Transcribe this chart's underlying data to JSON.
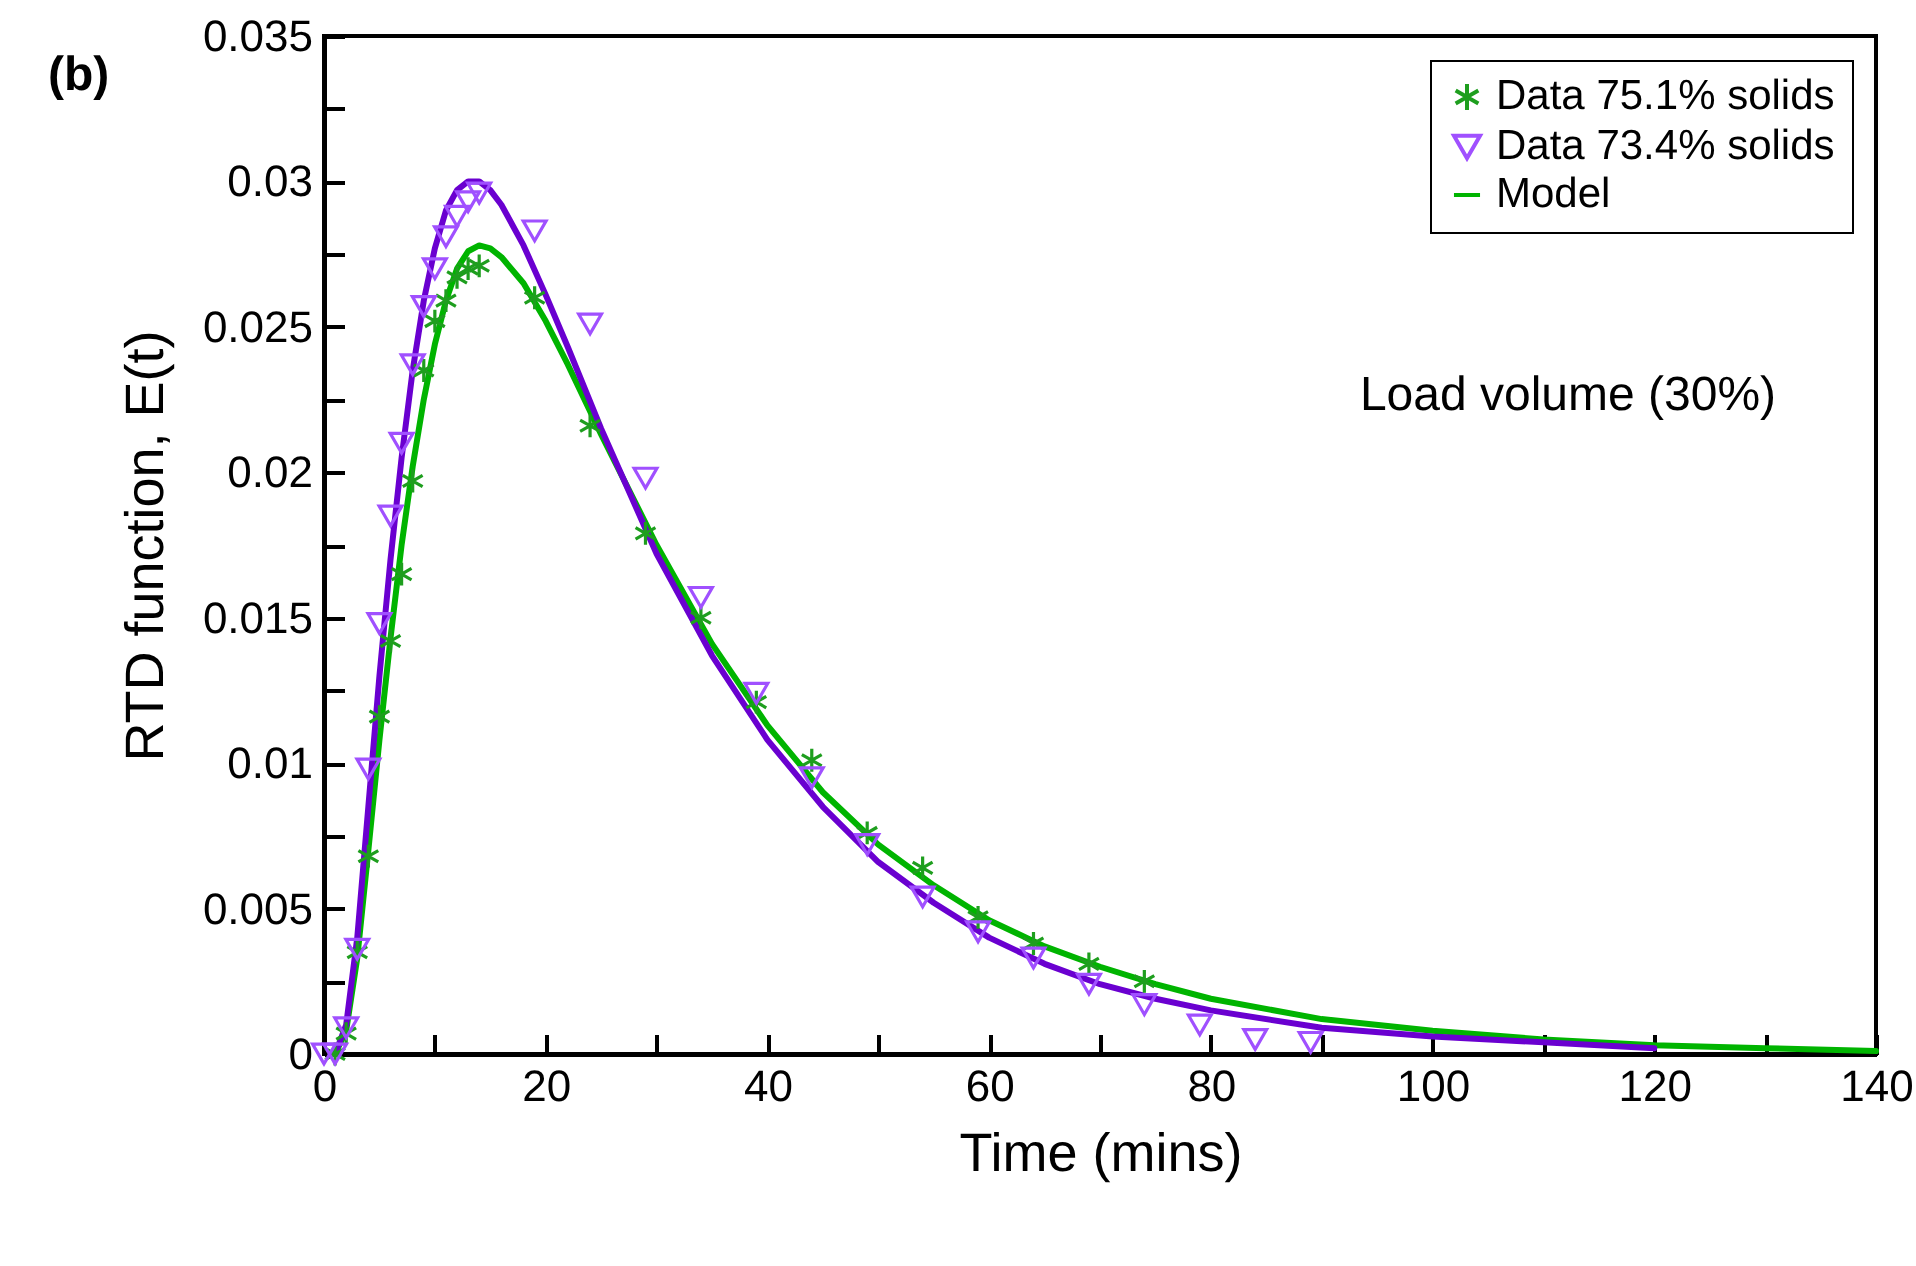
{
  "chart_data": {
    "type": "line",
    "xlabel": "Time (mins)",
    "ylabel": "RTD function, E(t)",
    "annotations": [
      "(b)",
      "Load volume (30%)"
    ],
    "xlim": [
      0,
      140
    ],
    "ylim": [
      0,
      0.035
    ],
    "xticks": [
      0,
      {
        "value": 10,
        "label": null
      },
      20,
      {
        "value": 30,
        "label": null
      },
      40,
      {
        "value": 50,
        "label": null
      },
      60,
      {
        "value": 70,
        "label": null
      },
      80,
      {
        "value": 90,
        "label": null
      },
      100,
      {
        "value": 110,
        "label": null
      },
      120,
      {
        "value": 130,
        "label": null
      },
      140
    ],
    "yticks": [
      0,
      {
        "value": 0.0025,
        "label": null
      },
      0.005,
      {
        "value": 0.0075,
        "label": null
      },
      0.01,
      {
        "value": 0.0125,
        "label": null
      },
      0.015,
      {
        "value": 0.0175,
        "label": null
      },
      0.02,
      {
        "value": 0.0225,
        "label": null
      },
      0.025,
      {
        "value": 0.0275,
        "label": null
      },
      0.03,
      {
        "value": 0.0325,
        "label": null
      },
      0.035
    ],
    "legend": "top right",
    "series": [
      {
        "name": "Data 75.1% solids",
        "type": "scatter",
        "marker": "cross",
        "color": "#1e9e1e",
        "x": [
          1,
          2,
          3,
          4,
          5,
          6,
          7,
          8,
          9,
          10,
          11,
          12,
          13,
          14,
          19,
          24,
          29,
          34,
          39,
          44,
          49,
          54,
          59,
          64,
          69,
          74
        ],
        "values": [
          0,
          0.0007,
          0.0035,
          0.0068,
          0.0116,
          0.0142,
          0.0165,
          0.0197,
          0.0235,
          0.0252,
          0.0259,
          0.0267,
          0.027,
          0.0271,
          0.026,
          0.0216,
          0.0179,
          0.015,
          0.0121,
          0.0101,
          0.0076,
          0.0064,
          0.0047,
          0.0038,
          0.0031,
          0.0025
        ]
      },
      {
        "name": "Data 73.4% solids",
        "type": "scatter",
        "marker": "triangle",
        "color": "#a050ff",
        "x": [
          0,
          1,
          2,
          3,
          4,
          5,
          6,
          7,
          8,
          9,
          10,
          11,
          12,
          13,
          14,
          19,
          24,
          29,
          34,
          39,
          44,
          49,
          54,
          59,
          64,
          69,
          74,
          79,
          84,
          89
        ],
        "values": [
          0,
          0,
          0.0009,
          0.0036,
          0.0098,
          0.0148,
          0.0185,
          0.021,
          0.0237,
          0.0257,
          0.027,
          0.0281,
          0.0288,
          0.0293,
          0.0296,
          0.0283,
          0.0251,
          0.0198,
          0.0157,
          0.0124,
          0.0095,
          0.0072,
          0.0054,
          0.0042,
          0.0033,
          0.0024,
          0.0017,
          0.001,
          0.0005,
          0.0004
        ]
      },
      {
        "name": "Model",
        "type": "line",
        "marker": "none",
        "color": "#00b400",
        "x": [
          1,
          2,
          3,
          4,
          5,
          6,
          7,
          8,
          9,
          10,
          11,
          12,
          13,
          14,
          15,
          16,
          18,
          20,
          22,
          25,
          30,
          35,
          40,
          45,
          50,
          55,
          60,
          65,
          70,
          75,
          80,
          90,
          100,
          110,
          120,
          130,
          140
        ],
        "values": [
          0,
          0.0008,
          0.0033,
          0.007,
          0.0108,
          0.0143,
          0.0175,
          0.0202,
          0.0225,
          0.0244,
          0.0259,
          0.027,
          0.0276,
          0.0278,
          0.0277,
          0.0274,
          0.0265,
          0.0252,
          0.0237,
          0.0213,
          0.0175,
          0.0141,
          0.0113,
          0.009,
          0.0072,
          0.0058,
          0.0046,
          0.0037,
          0.003,
          0.0024,
          0.0019,
          0.0012,
          0.0008,
          0.0005,
          0.0003,
          0.0002,
          0.0001
        ]
      },
      {
        "type": "line",
        "marker": "none",
        "color": "#6a00d0",
        "x": [
          1,
          2,
          3,
          4,
          5,
          6,
          7,
          8,
          9,
          10,
          11,
          12,
          13,
          14,
          15,
          16,
          18,
          20,
          22,
          25,
          30,
          35,
          40,
          45,
          50,
          55,
          60,
          65,
          70,
          75,
          80,
          90,
          100,
          110,
          120
        ],
        "values": [
          0,
          0.001,
          0.004,
          0.0085,
          0.013,
          0.017,
          0.0205,
          0.0235,
          0.0259,
          0.0277,
          0.029,
          0.0297,
          0.03,
          0.03,
          0.0297,
          0.0292,
          0.0278,
          0.0261,
          0.0243,
          0.0215,
          0.0172,
          0.0137,
          0.0108,
          0.0085,
          0.0066,
          0.0052,
          0.004,
          0.0031,
          0.0024,
          0.0019,
          0.0015,
          0.0009,
          0.0006,
          0.0004,
          0.0002
        ]
      }
    ]
  }
}
